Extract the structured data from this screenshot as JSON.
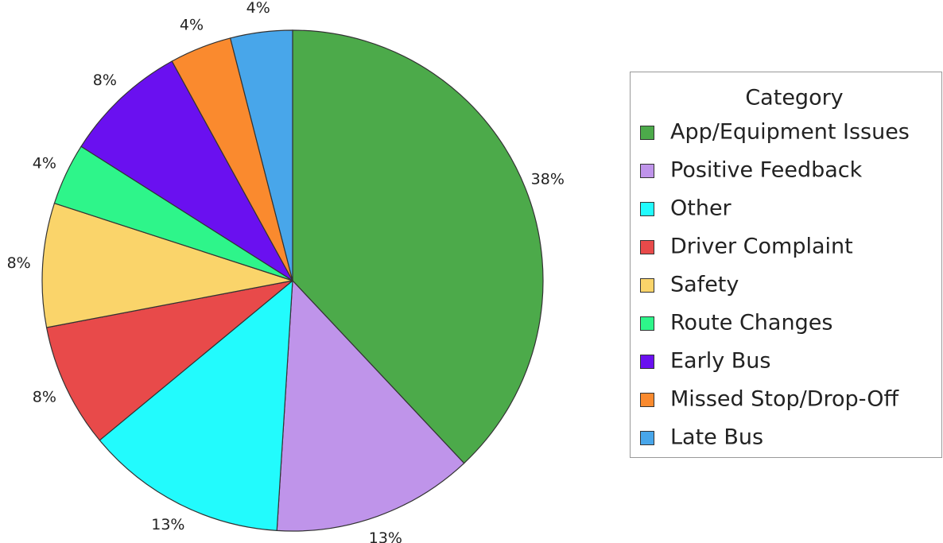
{
  "chart_data": {
    "type": "pie",
    "legend_title": "Category",
    "categories": [
      "App/Equipment Issues",
      "Positive Feedback",
      "Other",
      "Driver Complaint",
      "Safety",
      "Route Changes",
      "Early Bus",
      "Missed Stop/Drop-Off",
      "Late Bus"
    ],
    "values": [
      38,
      13,
      13,
      8,
      8,
      4,
      8,
      4,
      4
    ],
    "value_labels": [
      "38%",
      "13%",
      "13%",
      "8%",
      "8%",
      "4%",
      "8%",
      "4%",
      "4%"
    ],
    "colors": [
      "#4caa4a",
      "#bf94ea",
      "#22fbfd",
      "#e84a4a",
      "#fad46a",
      "#2ef58a",
      "#6a10f0",
      "#fa8a2e",
      "#48a6ea"
    ],
    "legend": "right"
  }
}
